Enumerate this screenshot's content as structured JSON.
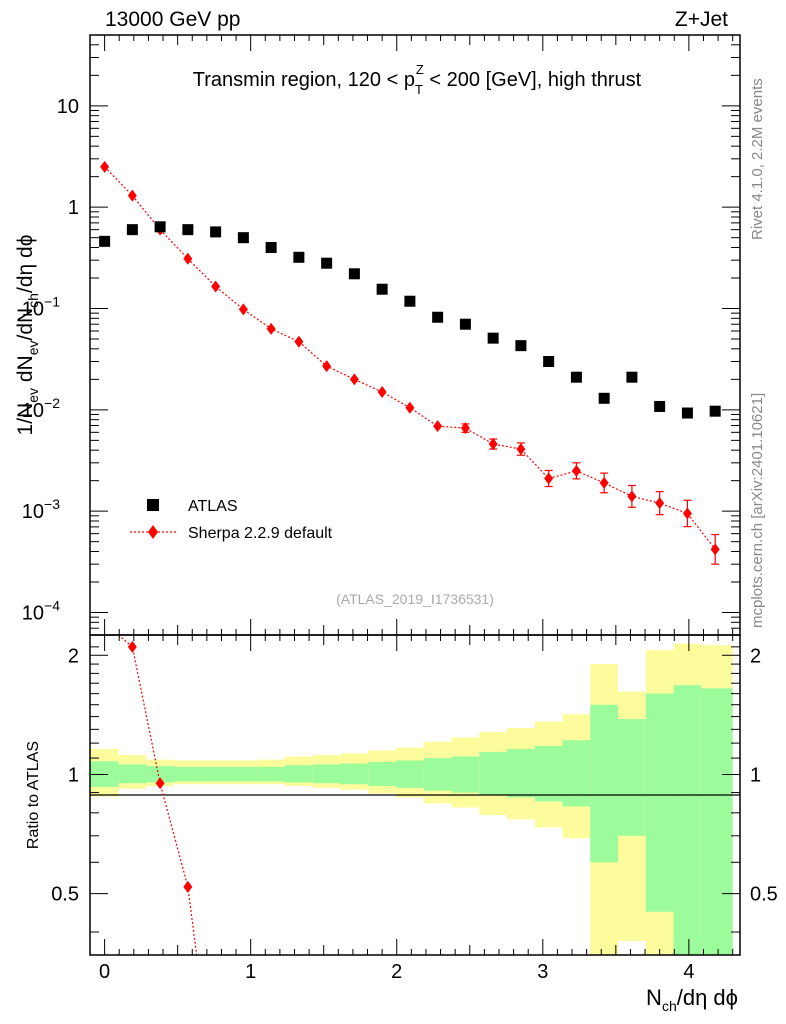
{
  "header": {
    "energy_label": "13000 GeV pp",
    "process_label": "Z+Jet",
    "rivet_label": "Rivet 4.1.0,  2.2M events",
    "source_label": "mcplots.cern.ch [arXiv:2401.10621]",
    "analysis_id": "(ATLAS_2019_I1736531)"
  },
  "colors": {
    "data": "#000000",
    "mc": "#ff0000",
    "band_inner": "#9cfc9c",
    "band_outer": "#fcfc9c"
  },
  "chart_data": [
    {
      "type": "scatter",
      "panel": "main",
      "title_parts": {
        "pre": "Transmin region, 120 < p",
        "sub": "T",
        "sup": "Z",
        "post": " < 200 [GeV], high thrust"
      },
      "ylabel_parts": [
        "1/N",
        "ev",
        " dN",
        "ev",
        "/dN",
        "ch",
        "/dη dϕ"
      ],
      "xlabel_parts": [
        "N",
        "ch",
        "/dη dϕ"
      ],
      "yscale": "log",
      "ylim": [
        6e-05,
        50
      ],
      "xlim": [
        -0.1,
        4.35
      ],
      "x_ticks": [
        0,
        1,
        2,
        3,
        4
      ],
      "x_tick_labels": [
        "0",
        "1",
        "2",
        "3",
        "4"
      ],
      "y_tick_labels": [
        {
          "v": 10,
          "base": "10",
          "exp": ""
        },
        {
          "v": 1,
          "base": "1",
          "exp": ""
        },
        {
          "v": 0.1,
          "base": "10",
          "exp": "−1"
        },
        {
          "v": 0.01,
          "base": "10",
          "exp": "−2"
        },
        {
          "v": 0.001,
          "base": "10",
          "exp": "−3"
        },
        {
          "v": 0.0001,
          "base": "10",
          "exp": "−4"
        }
      ],
      "legend": [
        "ATLAS",
        "Sherpa 2.2.9 default"
      ],
      "legend_position": "bottom-left",
      "series": [
        {
          "name": "ATLAS",
          "marker": "square",
          "x": [
            0,
            0.19,
            0.38,
            0.57,
            0.76,
            0.95,
            1.14,
            1.33,
            1.52,
            1.71,
            1.9,
            2.09,
            2.28,
            2.47,
            2.66,
            2.85,
            3.04,
            3.23,
            3.42,
            3.61,
            3.8,
            3.99,
            4.18
          ],
          "y": [
            0.46,
            0.6,
            0.64,
            0.6,
            0.57,
            0.5,
            0.4,
            0.32,
            0.28,
            0.22,
            0.155,
            0.118,
            0.082,
            0.07,
            0.051,
            0.043,
            0.03,
            0.021,
            0.013,
            0.021,
            0.0108,
            0.0093,
            0.0097
          ]
        },
        {
          "name": "Sherpa 2.2.9 default",
          "marker": "diamond",
          "x": [
            0,
            0.19,
            0.38,
            0.57,
            0.76,
            0.95,
            1.14,
            1.33,
            1.52,
            1.71,
            1.9,
            2.09,
            2.28,
            2.47,
            2.66,
            2.85,
            3.04,
            3.23,
            3.42,
            3.61,
            3.8,
            3.99,
            4.18
          ],
          "y": [
            2.5,
            1.3,
            0.6,
            0.31,
            0.165,
            0.098,
            0.063,
            0.047,
            0.027,
            0.02,
            0.015,
            0.0105,
            0.0069,
            0.0066,
            0.0046,
            0.0041,
            0.0021,
            0.0025,
            0.0019,
            0.0014,
            0.0012,
            0.00095,
            0.00042
          ],
          "err_rel": [
            0,
            0,
            0,
            0,
            0,
            0,
            0,
            0,
            0,
            0,
            0,
            0,
            0,
            0.1,
            0.12,
            0.15,
            0.2,
            0.2,
            0.25,
            0.28,
            0.3,
            0.35,
            0.4
          ]
        }
      ]
    },
    {
      "type": "ratio",
      "panel": "ratio",
      "ylabel": "Ratio to ATLAS",
      "ylim": [
        0.35,
        2.25
      ],
      "y_ticks": [
        0.5,
        1,
        2
      ],
      "y_tick_labels": [
        "0.5",
        "1",
        "2"
      ],
      "bin_edges": [
        -0.1,
        0.095,
        0.285,
        0.475,
        0.665,
        0.855,
        1.045,
        1.235,
        1.425,
        1.615,
        1.805,
        1.995,
        2.185,
        2.375,
        2.565,
        2.755,
        2.945,
        3.135,
        3.325,
        3.515,
        3.705,
        3.895,
        4.085,
        4.3
      ],
      "band_inner_lo": [
        0.93,
        0.95,
        0.955,
        0.96,
        0.96,
        0.96,
        0.96,
        0.955,
        0.95,
        0.945,
        0.935,
        0.925,
        0.91,
        0.9,
        0.885,
        0.875,
        0.855,
        0.83,
        0.6,
        0.7,
        0.45,
        0.35,
        0.35
      ],
      "band_inner_hi": [
        1.08,
        1.06,
        1.05,
        1.045,
        1.045,
        1.045,
        1.045,
        1.055,
        1.06,
        1.065,
        1.075,
        1.085,
        1.1,
        1.11,
        1.14,
        1.16,
        1.18,
        1.22,
        1.5,
        1.38,
        1.6,
        1.68,
        1.65
      ],
      "band_outer_lo": [
        0.88,
        0.92,
        0.935,
        0.945,
        0.945,
        0.945,
        0.945,
        0.935,
        0.925,
        0.915,
        0.895,
        0.875,
        0.845,
        0.825,
        0.79,
        0.77,
        0.735,
        0.69,
        0.35,
        0.38,
        0.35,
        0.35,
        0.35
      ],
      "band_outer_hi": [
        1.16,
        1.12,
        1.09,
        1.085,
        1.085,
        1.085,
        1.09,
        1.11,
        1.12,
        1.13,
        1.15,
        1.17,
        1.21,
        1.24,
        1.28,
        1.31,
        1.36,
        1.42,
        1.9,
        1.62,
        2.06,
        2.14,
        2.12
      ],
      "series": [
        {
          "name": "Sherpa 2.2.9 default",
          "x": [
            0.095,
            0.19,
            0.38,
            0.57,
            0.63
          ],
          "y": [
            3.0,
            2.1,
            0.95,
            0.52,
            0.35
          ],
          "markers": [
            false,
            true,
            true,
            true,
            false
          ]
        }
      ]
    }
  ]
}
